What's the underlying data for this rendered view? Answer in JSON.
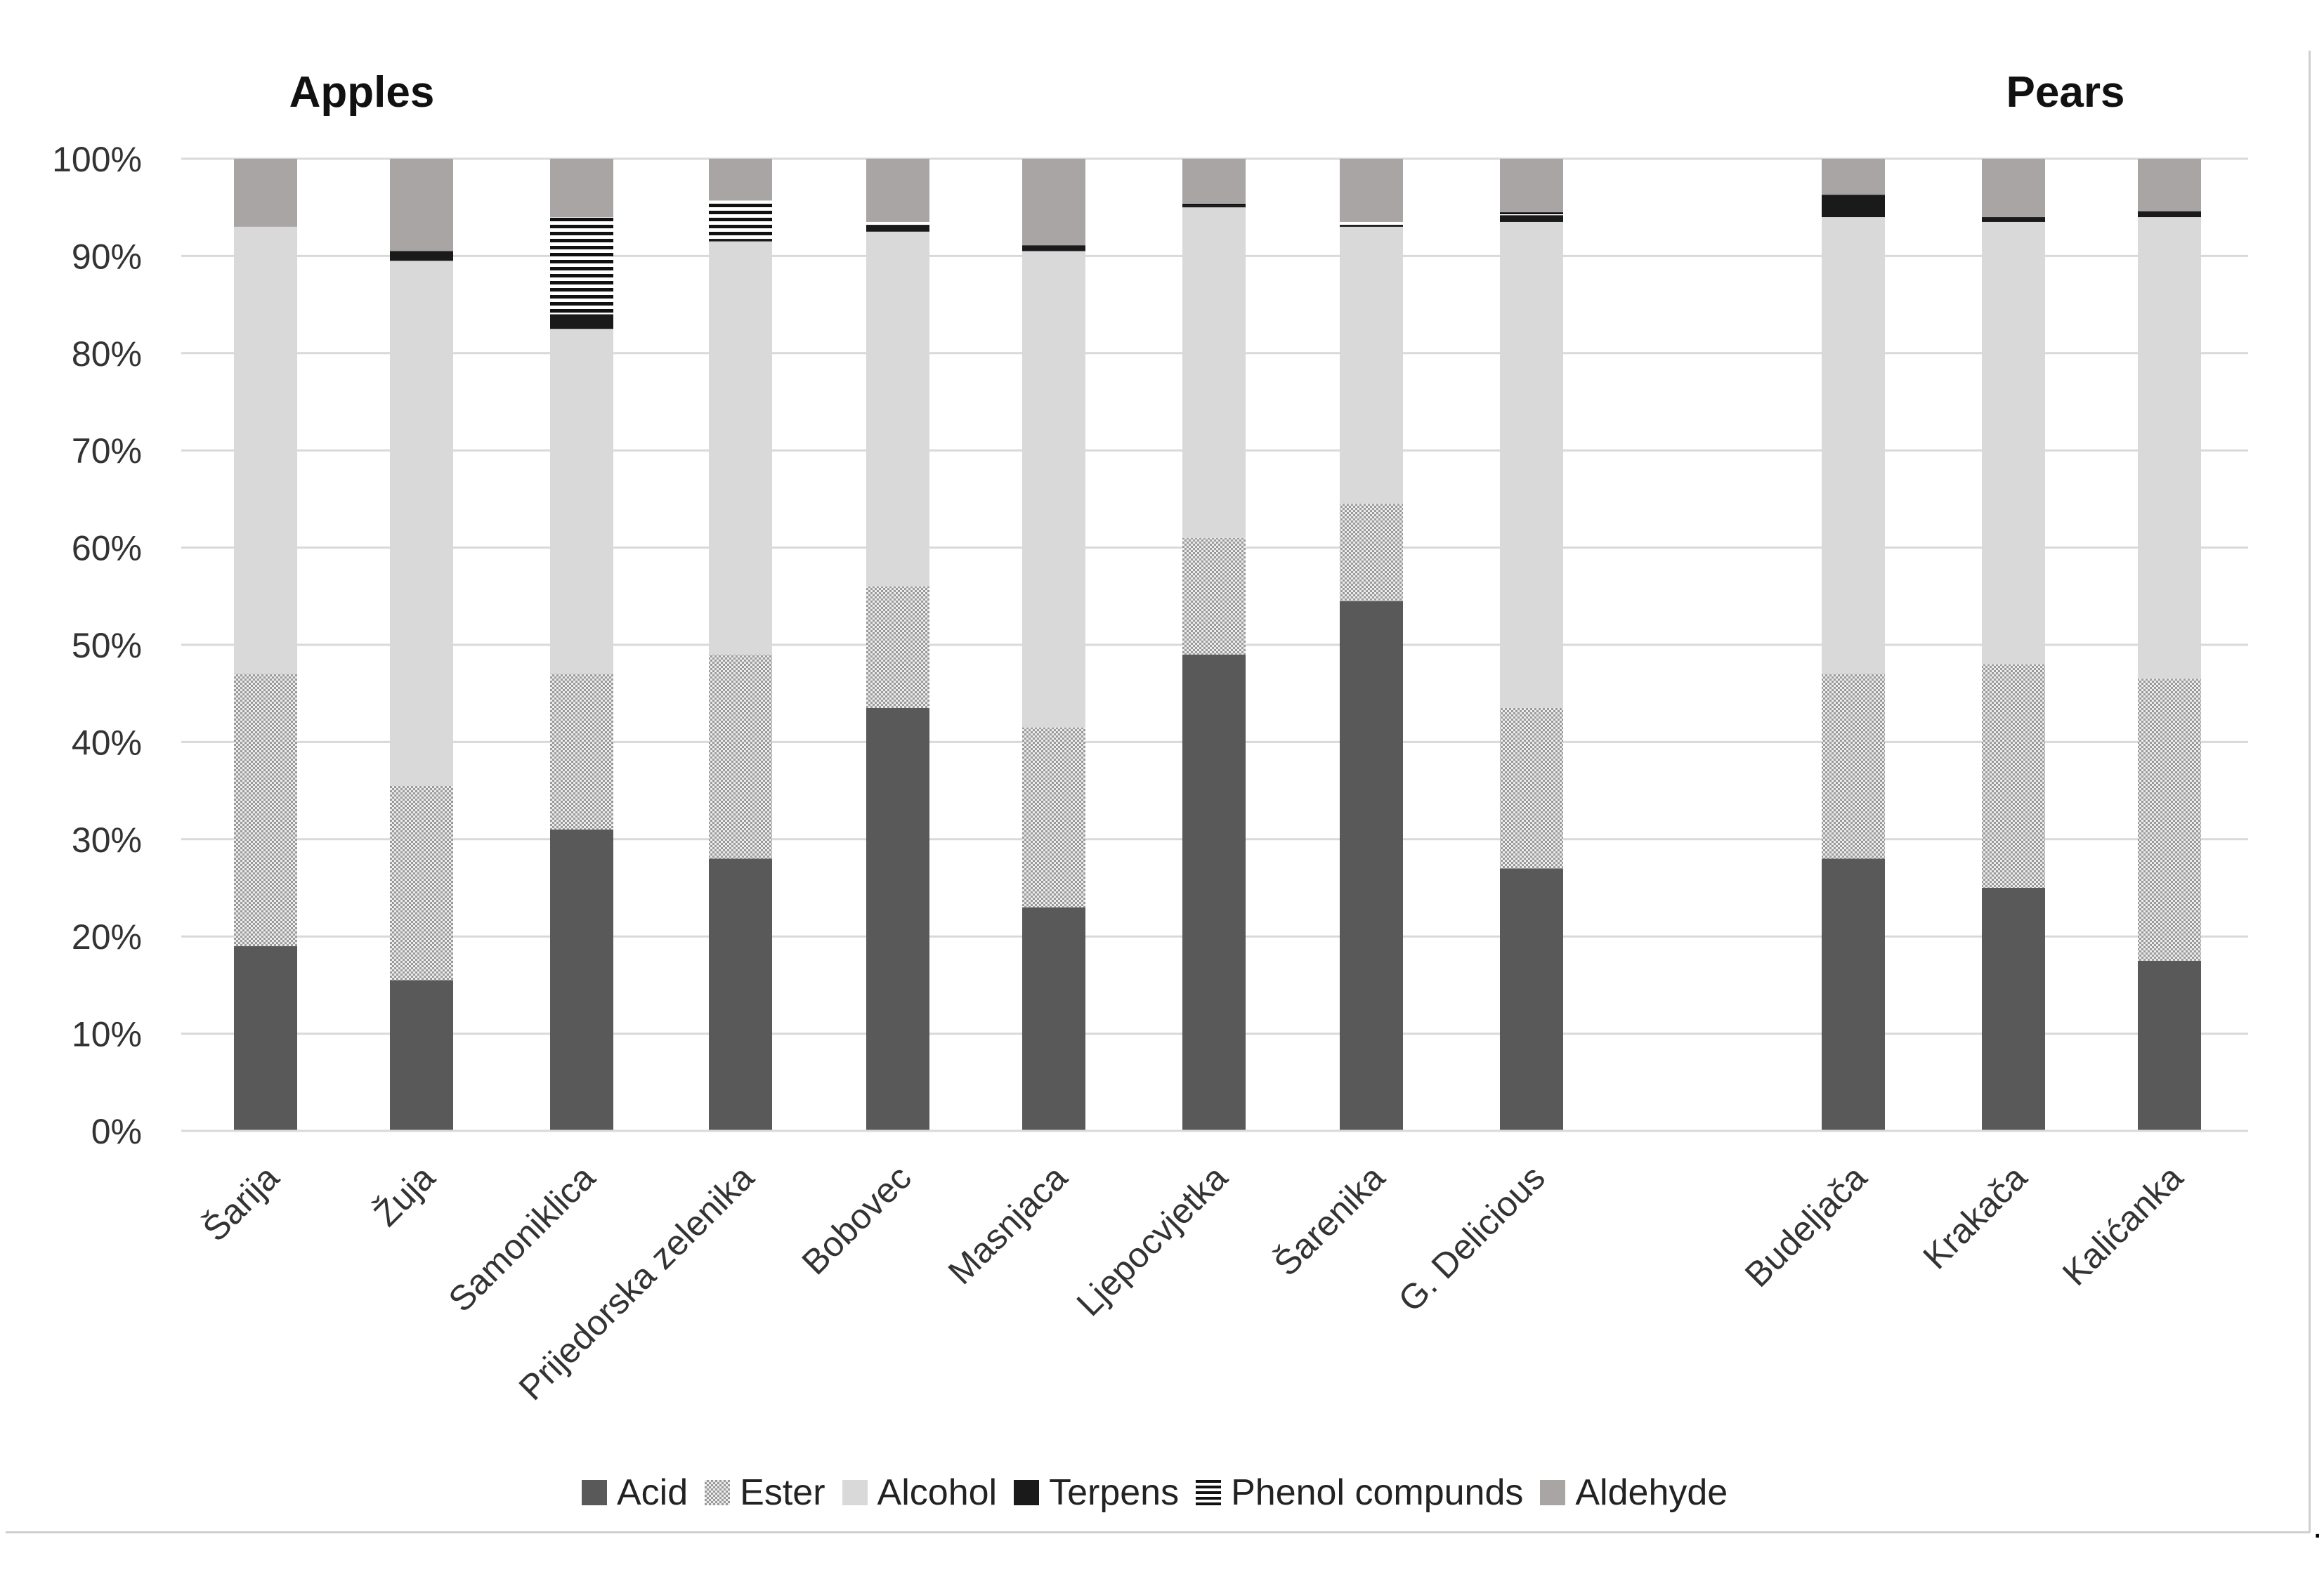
{
  "chart_data": {
    "type": "bar",
    "stacked": true,
    "groups": [
      {
        "title": "Apples",
        "categories": [
          "Šarija",
          "Žuja",
          "Samoniklica",
          "Prijedorska zelenika",
          "Bobovec",
          "Masnjaca",
          "Ljepocvjetka",
          "Šarenika",
          "G. Delicious"
        ]
      },
      {
        "title": "Pears",
        "categories": [
          "Budeljača",
          "Krakača",
          "Kalićanka"
        ]
      }
    ],
    "categories": [
      "Šarija",
      "Žuja",
      "Samoniklica",
      "Prijedorska zelenika",
      "Bobovec",
      "Masnjaca",
      "Ljepocvjetka",
      "Šarenika",
      "G. Delicious",
      "Budeljača",
      "Krakača",
      "Kalićanka"
    ],
    "series": [
      {
        "name": "Acid",
        "values": [
          19,
          15.5,
          31,
          28,
          43.5,
          23,
          49,
          54.5,
          27,
          28,
          25,
          17.5
        ]
      },
      {
        "name": "Ester",
        "values": [
          28,
          20,
          16,
          21,
          12.5,
          18.5,
          12,
          10,
          16.5,
          19,
          23,
          29
        ]
      },
      {
        "name": "Alcohol",
        "values": [
          46,
          54,
          35.5,
          42.5,
          36.5,
          49,
          34,
          28.5,
          50,
          47,
          45.5,
          47.5
        ]
      },
      {
        "name": "Terpens",
        "values": [
          0,
          1,
          1.5,
          0.2,
          0.7,
          0.6,
          0.2,
          0.2,
          0.7,
          2.3,
          0.5,
          0.6
        ]
      },
      {
        "name": "Phenol compunds",
        "values": [
          0,
          0,
          10,
          4,
          0.3,
          0,
          0.2,
          0.3,
          0.3,
          0,
          0,
          0
        ]
      },
      {
        "name": "Aldehyde",
        "values": [
          7,
          9.5,
          6,
          4.3,
          6.5,
          8.9,
          4.6,
          6.5,
          5.5,
          3.7,
          6,
          5.4
        ]
      }
    ],
    "yticks": [
      "0%",
      "10%",
      "20%",
      "30%",
      "40%",
      "50%",
      "60%",
      "70%",
      "80%",
      "90%",
      "100%"
    ],
    "ylim": [
      0,
      100
    ],
    "grid": true,
    "legend_position": "bottom",
    "colors": {
      "Acid": "#595959",
      "Ester": "#b8b8b8",
      "Alcohol": "#d9d9d9",
      "Terpens": "#1a1a1a",
      "Phenol compunds": "#1a1a1a",
      "Aldehyde": "#aaa5a5"
    },
    "gridline_color": "#d9d9d9"
  },
  "trailing_mark": "."
}
